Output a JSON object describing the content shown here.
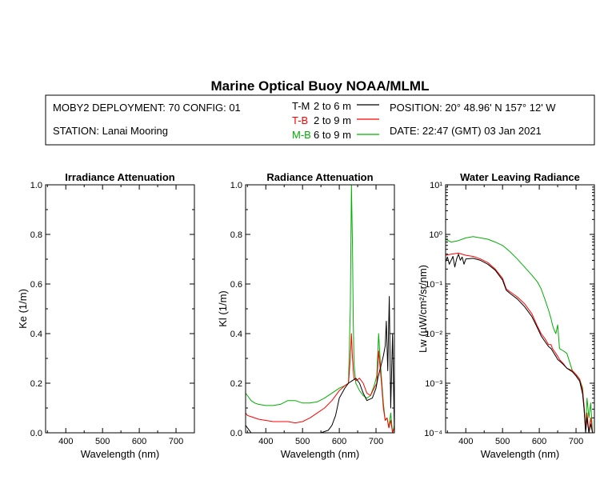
{
  "header": {
    "title": "Marine Optical Buoy NOAA/MLML",
    "deployment": "MOBY2 DEPLOYMENT: 70 CONFIG: 01",
    "station": "STATION: Lanai Mooring",
    "position": "POSITION: 20° 48.96' N   157° 12' W",
    "date": "DATE: 22:47 (GMT) 03 Jan 2021",
    "legend": [
      {
        "key": "T-M",
        "desc": "2 to 6  m",
        "color": "#000000"
      },
      {
        "key": "T-B",
        "desc": "2 to 9  m",
        "color": "#ff0000"
      },
      {
        "key": "M-B",
        "desc": "6 to 9  m",
        "color": "#00b000"
      }
    ]
  },
  "chart_data": [
    {
      "type": "line",
      "title": "Irradiance Attenuation",
      "xlabel": "Wavelength (nm)",
      "ylabel": "Ke  (1/m)",
      "xlim": [
        345,
        750
      ],
      "ylim": [
        0,
        1.0
      ],
      "xticks": [
        400,
        500,
        600,
        700
      ],
      "xtick_labels": [
        "400",
        "500",
        "600",
        "700"
      ],
      "yticks": [
        0,
        0.2,
        0.4,
        0.6,
        0.8,
        1.0
      ],
      "ytick_labels": [
        "0.0",
        "0.2",
        "0.4",
        "0.6",
        "0.8",
        "1.0"
      ],
      "series": []
    },
    {
      "type": "line",
      "title": "Radiance Attenuation",
      "xlabel": "Wavelength (nm)",
      "ylabel": "Kl  (1/m)",
      "xlim": [
        345,
        750
      ],
      "ylim": [
        0,
        1.0
      ],
      "xticks": [
        400,
        500,
        600,
        700
      ],
      "xtick_labels": [
        "400",
        "500",
        "600",
        "700"
      ],
      "yticks": [
        0,
        0.2,
        0.4,
        0.6,
        0.8,
        1.0
      ],
      "ytick_labels": [
        "0.0",
        "0.2",
        "0.4",
        "0.6",
        "0.8",
        "1.0"
      ],
      "series": [
        {
          "color": "#00b000",
          "x": [
            345,
            350,
            360,
            370,
            380,
            400,
            420,
            440,
            460,
            480,
            500,
            520,
            540,
            560,
            580,
            600,
            615,
            625,
            630,
            633,
            636,
            638,
            640,
            645,
            655,
            665,
            675,
            685,
            695,
            702,
            707,
            712,
            716,
            720,
            725,
            730,
            735,
            740,
            745,
            750
          ],
          "y": [
            0.16,
            0.15,
            0.13,
            0.12,
            0.115,
            0.11,
            0.11,
            0.115,
            0.13,
            0.13,
            0.12,
            0.12,
            0.125,
            0.14,
            0.16,
            0.18,
            0.19,
            0.2,
            0.5,
            1.0,
            0.75,
            0.45,
            0.28,
            0.2,
            0.17,
            0.15,
            0.14,
            0.15,
            0.19,
            0.23,
            0.4,
            0.28,
            0.2,
            0.12,
            0.05,
            0.06,
            0.02,
            0.08,
            0.0,
            0.03
          ]
        },
        {
          "color": "#ff0000",
          "x": [
            345,
            350,
            360,
            370,
            380,
            400,
            420,
            440,
            460,
            480,
            500,
            520,
            540,
            560,
            580,
            600,
            615,
            625,
            630,
            633,
            636,
            638,
            640,
            645,
            655,
            665,
            675,
            685,
            695,
            702,
            707,
            712,
            716,
            720,
            725,
            730,
            735,
            740,
            745,
            750
          ],
          "y": [
            0.08,
            0.07,
            0.065,
            0.06,
            0.055,
            0.05,
            0.045,
            0.045,
            0.045,
            0.04,
            0.045,
            0.06,
            0.08,
            0.1,
            0.13,
            0.17,
            0.19,
            0.2,
            0.3,
            0.4,
            0.3,
            0.25,
            0.22,
            0.21,
            0.22,
            0.2,
            0.16,
            0.15,
            0.18,
            0.2,
            0.33,
            0.25,
            0.18,
            0.1,
            0.05,
            0.06,
            0.02,
            0.05,
            0.0,
            0.02
          ]
        },
        {
          "color": "#000000",
          "x": [
            345,
            350,
            355,
            360,
            370,
            380,
            400,
            450,
            500,
            550,
            570,
            580,
            590,
            600,
            615,
            625,
            635,
            645,
            655,
            665,
            675,
            690,
            700,
            705,
            710,
            715,
            720,
            725,
            728,
            732,
            736,
            740,
            745,
            750
          ],
          "y": [
            0.03,
            0.02,
            0.01,
            0.0,
            0.0,
            0.0,
            0.0,
            0.0,
            0.0,
            0.0,
            0.01,
            0.03,
            0.07,
            0.14,
            0.18,
            0.2,
            0.21,
            0.22,
            0.2,
            0.16,
            0.13,
            0.14,
            0.18,
            0.22,
            0.25,
            0.28,
            0.31,
            0.35,
            0.45,
            0.25,
            0.55,
            0.1,
            0.4,
            0.0
          ]
        }
      ]
    },
    {
      "type": "line",
      "title": "Water Leaving Radiance",
      "xlabel": "Wavelength (nm)",
      "ylabel": "Lw  (µW/cm²/sr/nm)",
      "yscale": "log",
      "xlim": [
        345,
        750
      ],
      "ylim": [
        0.0001,
        10
      ],
      "xticks": [
        400,
        500,
        600,
        700
      ],
      "xtick_labels": [
        "400",
        "500",
        "600",
        "700"
      ],
      "yticks": [
        0.0001,
        0.001,
        0.01,
        0.1,
        1,
        10
      ],
      "ytick_labels": [
        "10⁻⁴",
        "10⁻³",
        "10⁻²",
        "10⁻¹",
        "10⁰",
        "10¹"
      ],
      "series": [
        {
          "color": "#00b000",
          "x": [
            345,
            360,
            380,
            400,
            420,
            440,
            460,
            480,
            500,
            520,
            540,
            560,
            580,
            595,
            605,
            615,
            625,
            632,
            636,
            640,
            645,
            650,
            655,
            665,
            675,
            690,
            700,
            710,
            718,
            722,
            726,
            730,
            735,
            740,
            745
          ],
          "y": [
            0.8,
            0.7,
            0.75,
            0.85,
            0.9,
            0.85,
            0.8,
            0.7,
            0.6,
            0.45,
            0.32,
            0.22,
            0.15,
            0.11,
            0.08,
            0.05,
            0.03,
            0.02,
            0.015,
            0.012,
            0.01,
            0.015,
            0.005,
            0.0045,
            0.004,
            0.0018,
            0.0015,
            0.0012,
            0.0008,
            0.0003,
            0.00012,
            0.0005,
            0.0002,
            0.0004,
            0.0001
          ]
        },
        {
          "color": "#ff0000",
          "x": [
            345,
            360,
            380,
            400,
            420,
            440,
            460,
            480,
            500,
            510,
            520,
            540,
            560,
            580,
            595,
            605,
            615,
            625,
            632,
            636,
            640,
            645,
            650,
            655,
            665,
            675,
            690,
            700,
            710,
            718,
            722,
            726,
            730,
            735,
            740,
            745
          ],
          "y": [
            0.38,
            0.4,
            0.42,
            0.38,
            0.36,
            0.32,
            0.27,
            0.2,
            0.13,
            0.08,
            0.07,
            0.055,
            0.04,
            0.025,
            0.014,
            0.01,
            0.008,
            0.006,
            0.006,
            0.005,
            0.0045,
            0.004,
            0.0035,
            0.003,
            0.0025,
            0.002,
            0.0018,
            0.0015,
            0.0012,
            0.0007,
            0.00035,
            0.00012,
            0.00025,
            0.0001,
            0.0002,
            0.0001
          ]
        },
        {
          "color": "#000000",
          "x": [
            345,
            350,
            355,
            360,
            365,
            370,
            375,
            380,
            385,
            390,
            395,
            400,
            420,
            440,
            460,
            480,
            500,
            510,
            520,
            540,
            560,
            580,
            595,
            605,
            615,
            625,
            632,
            636,
            640,
            645,
            650,
            655,
            665,
            675,
            690,
            700,
            710,
            718,
            722,
            726,
            730,
            735,
            740,
            745
          ],
          "y": [
            0.28,
            0.35,
            0.25,
            0.3,
            0.36,
            0.22,
            0.32,
            0.4,
            0.3,
            0.35,
            0.25,
            0.32,
            0.33,
            0.3,
            0.25,
            0.19,
            0.12,
            0.075,
            0.065,
            0.05,
            0.035,
            0.022,
            0.013,
            0.009,
            0.007,
            0.0055,
            0.005,
            0.0045,
            0.004,
            0.0035,
            0.003,
            0.0028,
            0.0024,
            0.002,
            0.0017,
            0.0014,
            0.0011,
            0.0006,
            0.0003,
            0.0001,
            0.0002,
            0.0001,
            0.00015,
            0.0001
          ]
        }
      ]
    }
  ]
}
